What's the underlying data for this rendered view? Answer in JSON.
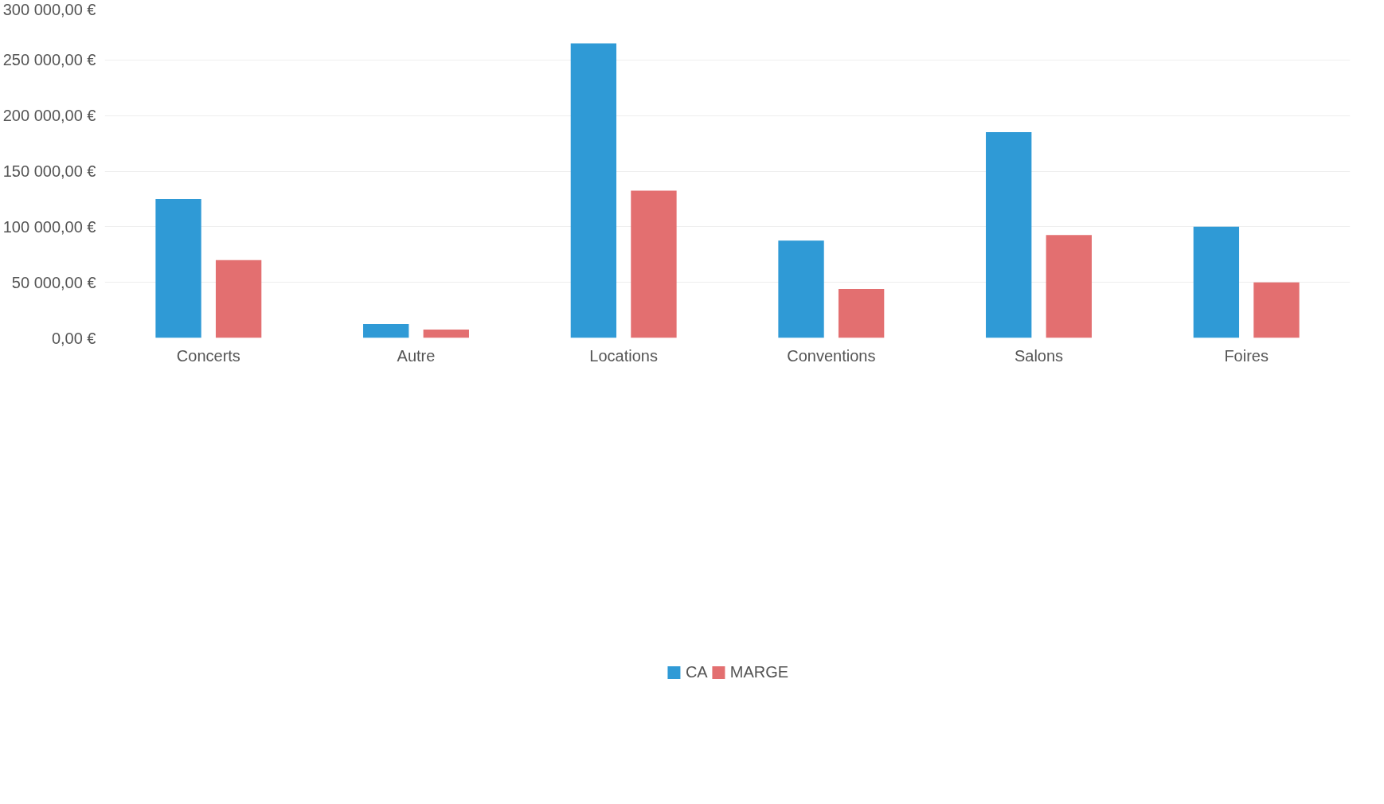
{
  "chart_data": {
    "type": "bar",
    "categories": [
      "Concerts",
      "Autre",
      "Locations",
      "Conventions",
      "Salons",
      "Foires"
    ],
    "series": [
      {
        "name": "CA",
        "color": "#2f9ad6",
        "values": [
          125000,
          12500,
          265000,
          87500,
          185000,
          100000
        ]
      },
      {
        "name": "MARGE",
        "color": "#e36f70",
        "values": [
          70000,
          7500,
          132500,
          44000,
          92500,
          50000
        ]
      }
    ],
    "ylim": [
      0,
      300000
    ],
    "yticks": [
      {
        "value": 0,
        "label": "0,00 €"
      },
      {
        "value": 50000,
        "label": "50 000,00 €"
      },
      {
        "value": 100000,
        "label": "100 000,00 €"
      },
      {
        "value": 150000,
        "label": "150 000,00 €"
      },
      {
        "value": 200000,
        "label": "200 000,00 €"
      },
      {
        "value": 250000,
        "label": "250 000,00 €"
      },
      {
        "value": 300000,
        "label": "300 000,00 €"
      }
    ],
    "grid": "y",
    "legend": "bottom"
  }
}
